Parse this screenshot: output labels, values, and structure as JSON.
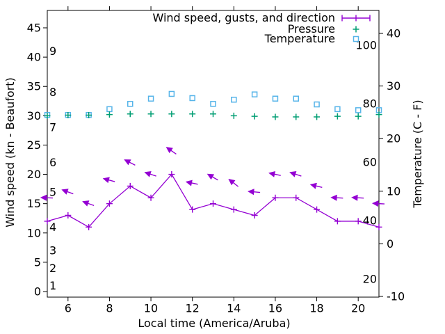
{
  "figure": {
    "background": "#ffffff",
    "axis_color": "#000000",
    "xlabel": "Local time (America/Aruba)",
    "ylabel_left": "Wind speed (kn - Beaufort)",
    "ylabel_right": "Temperature (C - F)"
  },
  "legend": {
    "position": "top-right-inside",
    "entries": [
      {
        "label": "Wind speed, gusts, and direction",
        "marker": "errorbar-line",
        "color": "#9400d3"
      },
      {
        "label": "Pressure",
        "marker": "plus",
        "color": "#009e73"
      },
      {
        "label": "Temperature",
        "marker": "open-square",
        "color": "#56b4e9"
      }
    ]
  },
  "chart_data": {
    "type": "line",
    "title": "",
    "xlabel": "Local time (America/Aruba)",
    "x_hours": [
      5,
      6,
      7,
      8,
      9,
      10,
      11,
      12,
      13,
      14,
      15,
      16,
      17,
      18,
      19,
      20,
      21
    ],
    "x_axis": {
      "tick_labels": [
        6,
        8,
        10,
        12,
        14,
        16,
        18,
        20
      ],
      "range": [
        5,
        21
      ]
    },
    "y_axis_left": {
      "label": "Wind speed (kn - Beaufort)",
      "ticks_kn": [
        0,
        5,
        10,
        15,
        20,
        25,
        30,
        35,
        40,
        45
      ],
      "range_kn": [
        -1,
        48
      ],
      "beaufort_scale": [
        {
          "force": 1,
          "kn": 1
        },
        {
          "force": 2,
          "kn": 4
        },
        {
          "force": 3,
          "kn": 7
        },
        {
          "force": 4,
          "kn": 11
        },
        {
          "force": 5,
          "kn": 17
        },
        {
          "force": 6,
          "kn": 22
        },
        {
          "force": 7,
          "kn": 28
        },
        {
          "force": 8,
          "kn": 34
        },
        {
          "force": 9,
          "kn": 41
        }
      ]
    },
    "y_axis_right": {
      "label": "Temperature (C - F)",
      "ticks_c": [
        -10,
        0,
        10,
        20,
        30,
        40
      ],
      "ticks_f": [
        20,
        40,
        60,
        80,
        100
      ],
      "range_c": [
        -10.1,
        44.5
      ]
    },
    "grid": false,
    "series": [
      {
        "name": "Wind speed, gusts, and direction",
        "color": "#9400d3",
        "marker": "plus-line-with-direction-arrows",
        "wind_kn": [
          12,
          13,
          11,
          15,
          18,
          16,
          20,
          14,
          15,
          14,
          13,
          16,
          16,
          14,
          12,
          12,
          11
        ],
        "gust_kn": [
          16,
          17,
          15,
          19,
          22,
          20,
          24,
          18.5,
          19.5,
          18.5,
          17,
          20,
          20,
          18,
          16,
          16,
          15
        ],
        "gust_arrow_tilt_deg": [
          2,
          20,
          20,
          15,
          27,
          18,
          35,
          12,
          30,
          38,
          5,
          12,
          18,
          14,
          3,
          3,
          3
        ]
      },
      {
        "name": "Pressure",
        "color": "#009e73",
        "marker": "plus",
        "axis": "left",
        "values": [
          30.0,
          30.1,
          30.1,
          30.2,
          30.3,
          30.3,
          30.3,
          30.3,
          30.3,
          30.0,
          29.9,
          29.8,
          29.8,
          29.8,
          29.9,
          29.9,
          30.2
        ]
      },
      {
        "name": "Temperature",
        "color": "#56b4e9",
        "marker": "open-square",
        "axis": "right",
        "values_c": [
          24.5,
          24.5,
          24.5,
          25.6,
          26.6,
          27.6,
          28.5,
          27.7,
          26.6,
          27.4,
          28.4,
          27.6,
          27.6,
          26.5,
          25.6,
          25.4,
          25.4
        ]
      }
    ]
  }
}
